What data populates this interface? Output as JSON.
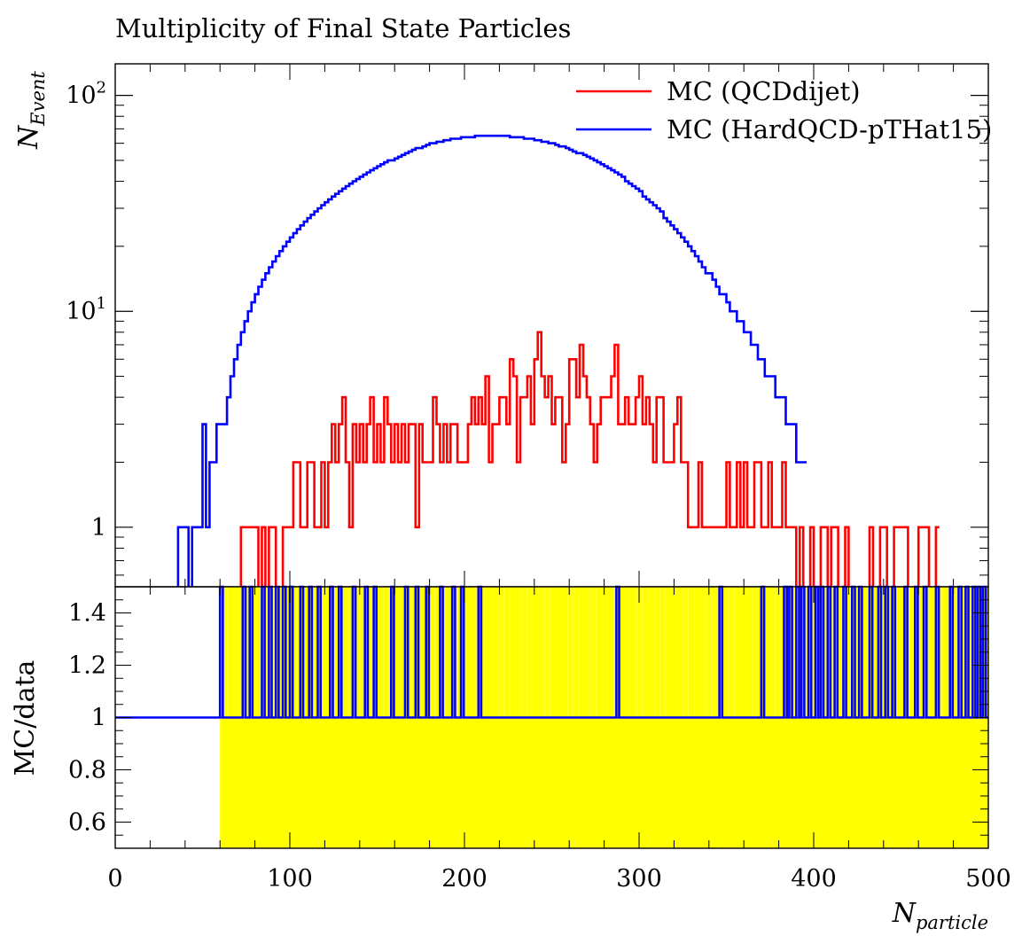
{
  "chart_data": {
    "type": "line",
    "title": "Multiplicity of Final State Particles",
    "ylabel": "N",
    "ylabel_sub": "Event",
    "xlabel": "N",
    "xlabel_sub": "particle",
    "xlim": [
      0,
      500
    ],
    "ylim_main": [
      0.53,
      140
    ],
    "yscale_main": "log",
    "main_y_ticks": [
      {
        "base": "1",
        "exp": "",
        "value": 1
      },
      {
        "base": "10",
        "exp": "1",
        "value": 10
      },
      {
        "base": "10",
        "exp": "2",
        "value": 100
      }
    ],
    "ratio_ylabel": "MC/data",
    "ratio_ylim": [
      0.5,
      1.5
    ],
    "ratio_y_ticks": [
      "0.6",
      "0.8",
      "1",
      "1.2",
      "1.4"
    ],
    "x_ticks": [
      "0",
      "100",
      "200",
      "300",
      "400",
      "500"
    ],
    "legend_position": "top-right",
    "colors": {
      "qcd": "#ff0000",
      "hard": "#0000ff",
      "band": "#ffff00"
    },
    "series": [
      {
        "name": "MC (QCDdijet)",
        "color": "#ff0000",
        "bin_width": 2,
        "x_start": 60,
        "values": [
          0,
          0,
          0,
          0,
          0,
          0,
          1,
          1,
          1,
          1,
          1,
          0,
          1,
          0,
          1,
          1,
          0,
          0,
          1,
          1,
          1,
          2,
          2,
          1,
          1,
          2,
          2,
          1,
          1,
          2,
          1,
          2,
          3,
          2,
          3,
          4,
          2,
          1,
          3,
          2,
          3,
          2,
          3,
          4,
          2,
          3,
          2,
          4,
          3,
          2,
          3,
          2,
          3,
          2,
          3,
          3,
          1,
          3,
          2,
          2,
          2,
          4,
          3,
          2,
          3,
          2,
          3,
          3,
          2,
          2,
          2,
          3,
          4,
          3,
          4,
          3,
          5,
          2,
          3,
          3,
          4,
          4,
          3,
          6,
          5,
          2,
          4,
          4,
          5,
          3,
          6,
          8,
          5,
          4,
          5,
          3,
          4,
          4,
          2,
          3,
          6,
          6,
          4,
          7,
          5,
          4,
          3,
          2,
          3,
          4,
          4,
          4,
          5,
          7,
          3,
          3,
          4,
          3,
          3,
          4,
          5,
          3,
          4,
          3,
          2,
          4,
          4,
          2,
          2,
          2,
          3,
          4,
          2,
          2,
          1,
          1,
          1,
          2,
          1,
          1,
          1,
          1,
          1,
          1,
          1,
          2,
          1,
          1,
          2,
          1,
          2,
          1,
          1,
          2,
          2,
          1,
          1,
          2,
          1,
          1,
          1,
          2,
          1,
          1,
          1,
          0,
          1,
          0,
          0,
          1,
          0,
          0,
          1,
          1,
          0,
          1,
          1,
          0,
          0,
          1,
          0,
          0,
          0,
          0,
          0,
          0,
          1,
          0,
          0,
          1,
          1,
          0,
          0,
          1,
          1,
          1,
          1,
          0,
          0,
          0,
          1,
          1,
          1,
          0,
          0,
          1
        ]
      },
      {
        "name": "MC (HardQCD-pTHat15)",
        "color": "#0000ff",
        "bin_width": 2,
        "x_start": 36,
        "values": [
          1,
          1,
          1,
          0,
          1,
          1,
          1,
          3,
          1,
          2,
          2,
          3,
          3,
          3,
          4,
          5,
          6,
          7,
          8,
          9,
          10,
          11,
          12,
          13,
          14,
          15,
          16,
          17,
          18,
          19,
          20,
          21,
          22,
          23,
          24,
          25,
          26,
          27,
          28,
          29,
          30,
          31,
          32,
          33,
          34,
          35,
          36,
          37,
          38,
          39,
          40,
          41,
          42,
          43,
          44,
          45,
          46,
          47,
          48,
          49,
          50,
          50,
          51,
          52,
          53,
          54,
          55,
          56,
          57,
          57,
          58,
          59,
          60,
          60,
          61,
          61,
          62,
          62,
          63,
          63,
          63,
          64,
          64,
          64,
          64,
          65,
          65,
          65,
          65,
          65,
          65,
          65,
          65,
          65,
          65,
          64,
          64,
          64,
          64,
          63,
          63,
          63,
          62,
          62,
          61,
          61,
          60,
          60,
          59,
          58,
          58,
          57,
          56,
          55,
          54,
          54,
          53,
          52,
          51,
          50,
          49,
          48,
          47,
          46,
          45,
          44,
          43,
          42,
          40,
          39,
          38,
          37,
          36,
          34,
          33,
          32,
          31,
          30,
          29,
          27,
          26,
          25,
          24,
          23,
          22,
          21,
          20,
          19,
          18,
          17,
          16,
          15,
          15,
          14,
          13,
          12,
          12,
          11,
          10,
          10,
          9,
          9,
          8,
          8,
          7,
          7,
          6,
          6,
          5,
          5,
          5,
          4,
          4,
          4,
          3,
          3,
          3,
          2,
          2,
          2
        ]
      }
    ]
  }
}
